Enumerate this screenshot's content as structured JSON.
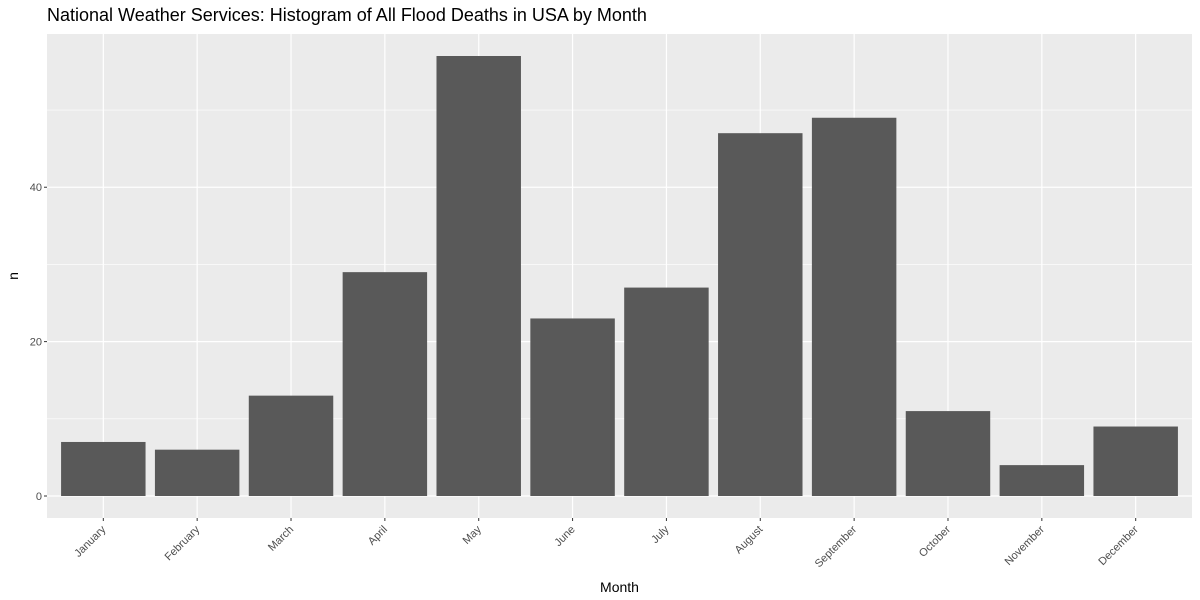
{
  "chart_data": {
    "type": "bar",
    "title": "National Weather Services: Histogram of All Flood Deaths in USA by Month",
    "xlabel": "Month",
    "ylabel": "n",
    "categories": [
      "January",
      "February",
      "March",
      "April",
      "May",
      "June",
      "July",
      "August",
      "September",
      "October",
      "November",
      "December"
    ],
    "values": [
      7,
      6,
      13,
      29,
      57,
      23,
      27,
      47,
      49,
      11,
      4,
      9
    ],
    "y_ticks": [
      0,
      20,
      40
    ],
    "ylim": [
      -2.85,
      59.85
    ],
    "grid": true,
    "legend": "none"
  },
  "colors": {
    "bar": "#595959",
    "panel_background": "#ebebeb",
    "grid_major": "#ffffff",
    "tick_text": "#4d4d4d"
  }
}
